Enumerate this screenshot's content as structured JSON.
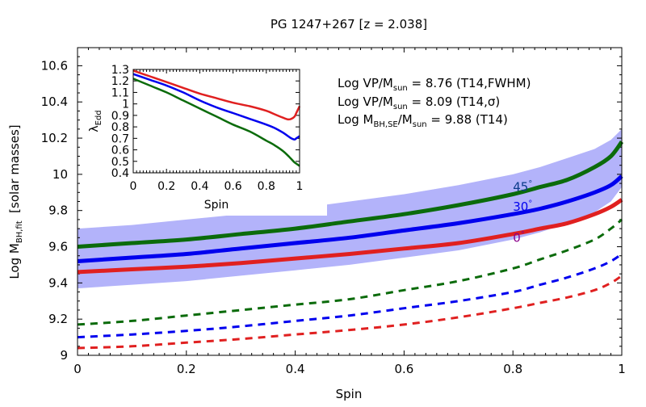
{
  "chart_data": {
    "type": "line",
    "title": "PG 1247+267  [z = 2.038]",
    "xlabel": "Spin",
    "ylabel_main": "Log M",
    "ylabel_sub": "BH,fit",
    "ylabel_rest": "  [solar masses]",
    "xlim": [
      0,
      1
    ],
    "ylim": [
      9.0,
      10.7
    ],
    "xticks": [
      0,
      0.2,
      0.4,
      0.6,
      0.8,
      1
    ],
    "xtick_labels": [
      "0",
      "0.2",
      "0.4",
      "0.6",
      "0.8",
      "1"
    ],
    "yticks": [
      9,
      9.2,
      9.4,
      9.6,
      9.8,
      10,
      10.2,
      10.4,
      10.6
    ],
    "ytick_labels": [
      "9",
      "9.2",
      "9.4",
      "9.6",
      "9.8",
      "10",
      "10.2",
      "10.4",
      "10.6"
    ],
    "x": [
      0,
      0.1,
      0.2,
      0.3,
      0.4,
      0.5,
      0.6,
      0.7,
      0.8,
      0.85,
      0.9,
      0.95,
      0.98,
      1.0
    ],
    "band": {
      "name": "uncertainty band",
      "color": "#b3b3fa",
      "lower": [
        9.37,
        9.39,
        9.41,
        9.44,
        9.47,
        9.5,
        9.54,
        9.58,
        9.64,
        9.68,
        9.73,
        9.79,
        9.85,
        9.93
      ],
      "upper": [
        9.7,
        9.72,
        9.75,
        9.78,
        9.81,
        9.85,
        9.89,
        9.94,
        10.0,
        10.04,
        10.09,
        10.14,
        10.19,
        10.25
      ]
    },
    "series": [
      {
        "name": "45°",
        "angle": "45",
        "color": "#0b6b0b",
        "style": "solid",
        "values": [
          9.6,
          9.62,
          9.64,
          9.67,
          9.7,
          9.74,
          9.78,
          9.83,
          9.89,
          9.93,
          9.97,
          10.04,
          10.1,
          10.18
        ]
      },
      {
        "name": "30°",
        "angle": "30",
        "color": "#0000ee",
        "style": "solid",
        "values": [
          9.52,
          9.54,
          9.56,
          9.59,
          9.62,
          9.65,
          9.69,
          9.73,
          9.78,
          9.81,
          9.85,
          9.9,
          9.94,
          9.99
        ]
      },
      {
        "name": "0°",
        "angle": "0",
        "color": "#e02020",
        "style": "solid",
        "values": [
          9.46,
          9.475,
          9.49,
          9.51,
          9.535,
          9.56,
          9.59,
          9.62,
          9.67,
          9.7,
          9.73,
          9.78,
          9.82,
          9.86
        ]
      },
      {
        "name": "45° (dashed)",
        "color": "#0b6b0b",
        "style": "dashed",
        "values": [
          9.17,
          9.19,
          9.22,
          9.25,
          9.28,
          9.31,
          9.36,
          9.41,
          9.48,
          9.53,
          9.58,
          9.64,
          9.7,
          9.75
        ]
      },
      {
        "name": "30° (dashed)",
        "color": "#0000ee",
        "style": "dashed",
        "values": [
          9.1,
          9.115,
          9.135,
          9.16,
          9.19,
          9.22,
          9.26,
          9.3,
          9.35,
          9.39,
          9.43,
          9.48,
          9.52,
          9.56
        ]
      },
      {
        "name": "0° (dashed)",
        "color": "#e02020",
        "style": "dashed",
        "values": [
          9.04,
          9.05,
          9.07,
          9.09,
          9.115,
          9.14,
          9.17,
          9.21,
          9.26,
          9.29,
          9.32,
          9.36,
          9.4,
          9.44
        ]
      }
    ],
    "curve_labels": [
      {
        "text": "45",
        "deg": "°",
        "color": "#0b3b8b",
        "x": 0.8,
        "y": 9.93
      },
      {
        "text": "30",
        "deg": "°",
        "color": "#0000ee",
        "x": 0.8,
        "y": 9.82
      },
      {
        "text": "0",
        "deg": "°",
        "color": "#8b008b",
        "x": 0.8,
        "y": 9.65
      }
    ],
    "annotations": [
      {
        "pre": "Log VP/M",
        "sub": "sun",
        "post": " = 8.76 (T14,FWHM)"
      },
      {
        "pre": "Log VP/M",
        "sub": "sun",
        "post": " = 8.09 (T14,σ)"
      },
      {
        "pre": "Log M",
        "sub": "BH,SE",
        "mid": "/M",
        "sub2": "sun",
        "post": " = 9.88 (T14)"
      }
    ],
    "inset": {
      "xlabel": "Spin",
      "ylabel_main": "λ",
      "ylabel_sub": "Edd",
      "xlim": [
        0,
        1
      ],
      "ylim": [
        0.4,
        1.3
      ],
      "xticks": [
        0,
        0.2,
        0.4,
        0.6,
        0.8,
        1
      ],
      "xtick_labels": [
        "0",
        "0.2",
        "0.4",
        "0.6",
        "0.8",
        "1"
      ],
      "yticks": [
        0.4,
        0.5,
        0.6,
        0.7,
        0.8,
        0.9,
        1.0,
        1.1,
        1.2,
        1.3
      ],
      "ytick_labels": [
        "0.4",
        "0.5",
        "0.6",
        "0.7",
        "0.8",
        "0.9",
        "1",
        "1.1",
        "1.2",
        "1.3"
      ],
      "x": [
        0,
        0.1,
        0.2,
        0.3,
        0.4,
        0.5,
        0.6,
        0.7,
        0.8,
        0.85,
        0.9,
        0.93,
        0.95,
        0.97,
        0.98,
        1.0
      ],
      "series": [
        {
          "name": "0°",
          "color": "#e02020",
          "values": [
            1.29,
            1.24,
            1.19,
            1.14,
            1.09,
            1.05,
            1.01,
            0.98,
            0.94,
            0.91,
            0.88,
            0.865,
            0.87,
            0.89,
            0.92,
            0.98
          ]
        },
        {
          "name": "30°",
          "color": "#0000ee",
          "values": [
            1.26,
            1.21,
            1.16,
            1.1,
            1.03,
            0.97,
            0.92,
            0.87,
            0.82,
            0.79,
            0.75,
            0.72,
            0.7,
            0.69,
            0.7,
            0.72
          ]
        },
        {
          "name": "45°",
          "color": "#0b6b0b",
          "values": [
            1.22,
            1.16,
            1.1,
            1.03,
            0.96,
            0.89,
            0.82,
            0.76,
            0.68,
            0.64,
            0.59,
            0.55,
            0.52,
            0.49,
            0.48,
            0.46
          ]
        }
      ]
    }
  }
}
